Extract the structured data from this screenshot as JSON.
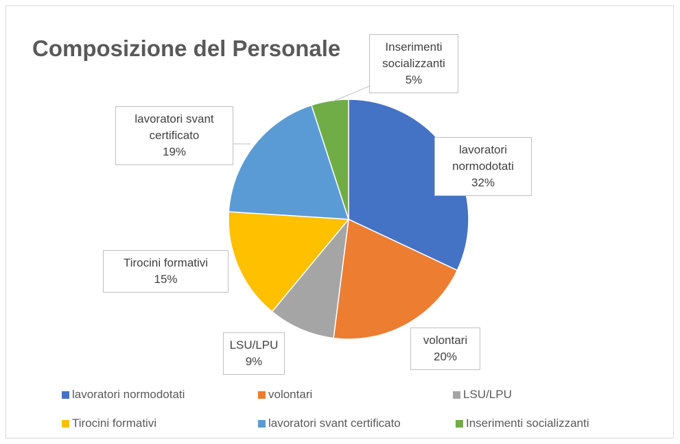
{
  "chart_data": {
    "type": "pie",
    "title": "Composizione del Personale",
    "categories": [
      "lavoratori normodotati",
      "volontari",
      "LSU/LPU",
      "Tirocini formativi",
      "lavoratori svant certificato",
      "Inserimenti socializzanti"
    ],
    "values": [
      32,
      20,
      9,
      15,
      19,
      5
    ],
    "value_labels": [
      "32%",
      "20%",
      "9%",
      "15%",
      "19%",
      "5%"
    ],
    "colors": [
      "#4472c4",
      "#ed7d31",
      "#a5a5a5",
      "#ffc000",
      "#5b9bd5",
      "#70ad47"
    ],
    "legend": "bottom"
  }
}
